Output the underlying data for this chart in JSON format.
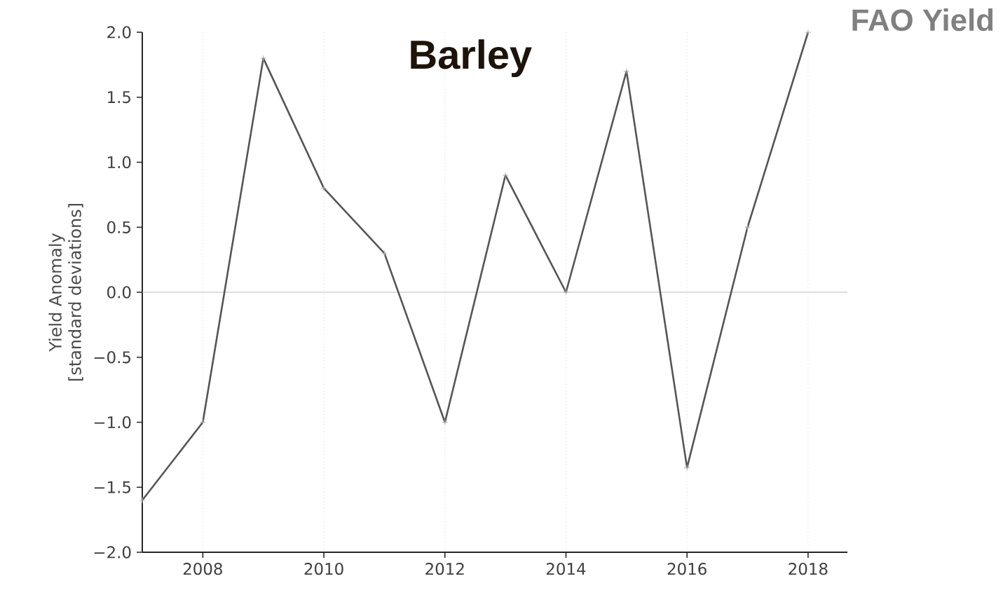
{
  "chart_data": {
    "type": "line",
    "title": "Barley",
    "ylabel": "Yield Anomaly\n[standard deviations]",
    "annotations": [
      "FAO Yield"
    ],
    "x": [
      2007,
      2008,
      2009,
      2010,
      2011,
      2012,
      2013,
      2014,
      2015,
      2016,
      2017,
      2018
    ],
    "series": [
      {
        "color": "#555555",
        "values": [
          -1.6,
          -1.0,
          1.8,
          0.8,
          0.3,
          -1.0,
          0.9,
          0.0,
          1.7,
          -1.35,
          0.5,
          2.0
        ]
      }
    ],
    "xlim": [
      2007,
      2018.65
    ],
    "xticks": [
      2008,
      2010,
      2012,
      2014,
      2016,
      2018
    ],
    "ylim": [
      -2.0,
      2.0
    ],
    "yticks": [
      {
        "value": -2.0,
        "label": "−2.0"
      },
      {
        "value": -1.5,
        "label": "−1.5"
      },
      {
        "value": -1.0,
        "label": "−1.0"
      },
      {
        "value": -0.5,
        "label": "−0.5"
      },
      {
        "value": 0.0,
        "label": "0.0"
      },
      {
        "value": 0.5,
        "label": "0.5"
      },
      {
        "value": 1.0,
        "label": "1.0"
      },
      {
        "value": 1.5,
        "label": "1.5"
      },
      {
        "value": 2.0,
        "label": "2.0"
      }
    ],
    "ref_lines": [
      {
        "axis": "y",
        "value": 0,
        "color": "#bbbbbb"
      }
    ],
    "grid": "x",
    "marker": "cross",
    "line_style": "solid"
  }
}
